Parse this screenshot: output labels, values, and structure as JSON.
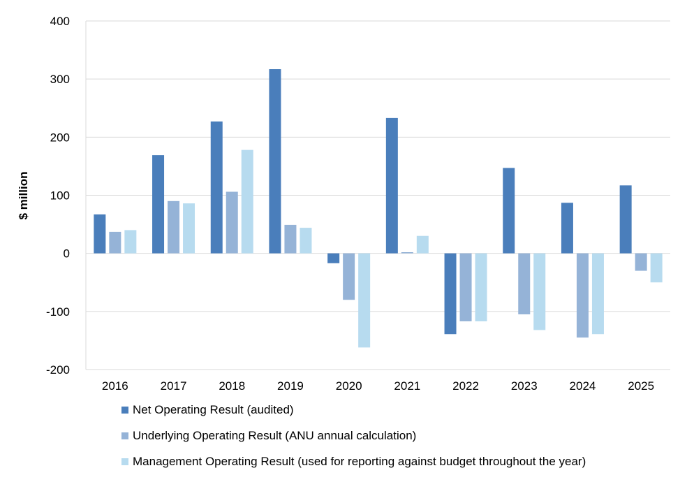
{
  "chart_data": {
    "type": "bar",
    "categories": [
      "2016",
      "2017",
      "2018",
      "2019",
      "2020",
      "2021",
      "2022",
      "2023",
      "2024",
      "2025"
    ],
    "series": [
      {
        "name": "Net Operating Result (audited)",
        "color": "#4a7ebb",
        "values": [
          67,
          169,
          227,
          317,
          -17,
          233,
          -139,
          147,
          87,
          117
        ]
      },
      {
        "name": "Underlying Operating Result (ANU annual calculation)",
        "color": "#95b3d7",
        "values": [
          37,
          90,
          106,
          49,
          -80,
          2,
          -117,
          -105,
          -145,
          -30
        ]
      },
      {
        "name": "Management Operating Result (used for reporting against budget throughout the year)",
        "color": "#b7dbef",
        "values": [
          40,
          86,
          178,
          44,
          -162,
          30,
          -117,
          -132,
          -139,
          -50
        ]
      }
    ],
    "ylabel": "$ million",
    "xlabel": "",
    "ylim": [
      -200,
      400
    ],
    "yticks": [
      -200,
      -100,
      0,
      100,
      200,
      300,
      400
    ],
    "grid": true,
    "legend_position": "bottom"
  }
}
